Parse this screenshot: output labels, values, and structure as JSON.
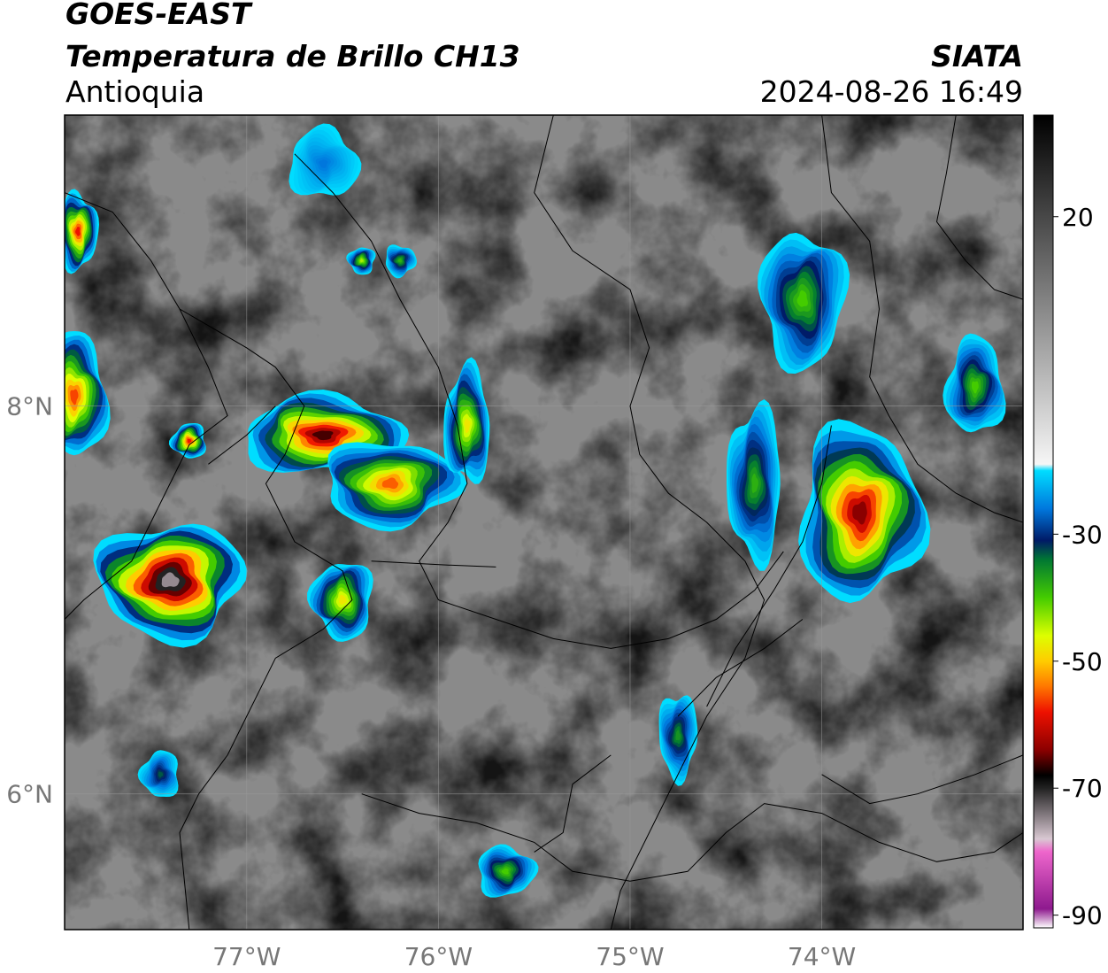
{
  "header": {
    "satellite": "GOES-EAST",
    "product": "Temperatura de Brillo CH13",
    "region": "Antioquia",
    "agency": "SIATA",
    "timestamp": "2024-08-26 16:49"
  },
  "map": {
    "lon_range": [
      -77.95,
      -72.95
    ],
    "lat_range": [
      5.3,
      9.5
    ],
    "lon_ticks": [
      {
        "value": -77,
        "label": "77°W"
      },
      {
        "value": -76,
        "label": "76°W"
      },
      {
        "value": -75,
        "label": "75°W"
      },
      {
        "value": -74,
        "label": "74°W"
      }
    ],
    "lat_ticks": [
      {
        "value": 8,
        "label": "8°N"
      },
      {
        "value": 6,
        "label": "6°N"
      }
    ],
    "gridlines": true
  },
  "colorbar": {
    "ticks": [
      {
        "value": 20,
        "label": "20"
      },
      {
        "value": -30,
        "label": "-30"
      },
      {
        "value": -50,
        "label": "-50"
      },
      {
        "value": -70,
        "label": "-70"
      },
      {
        "value": -90,
        "label": "-90"
      }
    ],
    "range": [
      -92,
      36
    ],
    "stops": [
      {
        "value": -92,
        "color": "#ffffff"
      },
      {
        "value": -89,
        "color": "#8e1a8e"
      },
      {
        "value": -80,
        "color": "#ee66cc"
      },
      {
        "value": -78,
        "color": "#d9c8d2"
      },
      {
        "value": -70,
        "color": "#222222"
      },
      {
        "value": -68,
        "color": "#000000"
      },
      {
        "value": -64,
        "color": "#8b0000"
      },
      {
        "value": -58,
        "color": "#ee1100"
      },
      {
        "value": -54,
        "color": "#ff7700"
      },
      {
        "value": -50,
        "color": "#ffcc00"
      },
      {
        "value": -46,
        "color": "#ddff00"
      },
      {
        "value": -40,
        "color": "#44cc00"
      },
      {
        "value": -34,
        "color": "#007733"
      },
      {
        "value": -31,
        "color": "#001a66"
      },
      {
        "value": -26,
        "color": "#0077dd"
      },
      {
        "value": -20,
        "color": "#00ddff"
      },
      {
        "value": -19,
        "color": "#f6f6f6"
      },
      {
        "value": 36,
        "color": "#000000"
      }
    ]
  },
  "storms": [
    {
      "id": "w-edge",
      "lon": -77.9,
      "lat": 8.05,
      "rx": 0.17,
      "ry": 0.32,
      "core": -56
    },
    {
      "id": "nw-edge",
      "lon": -77.88,
      "lat": 8.9,
      "rx": 0.1,
      "ry": 0.2,
      "core": -58
    },
    {
      "id": "uraba-large",
      "lon": -77.4,
      "lat": 7.1,
      "rx": 0.38,
      "ry": 0.3,
      "core": -75
    },
    {
      "id": "uraba-small",
      "lon": -77.3,
      "lat": 7.82,
      "rx": 0.09,
      "ry": 0.09,
      "core": -58
    },
    {
      "id": "north-center",
      "lon": -76.6,
      "lat": 7.85,
      "rx": 0.42,
      "ry": 0.2,
      "core": -66
    },
    {
      "id": "mid-body",
      "lon": -76.25,
      "lat": 7.6,
      "rx": 0.35,
      "ry": 0.22,
      "core": -55
    },
    {
      "id": "mid-tail",
      "lon": -76.5,
      "lat": 7.0,
      "rx": 0.16,
      "ry": 0.2,
      "core": -48
    },
    {
      "id": "ne-band",
      "lon": -75.85,
      "lat": 7.9,
      "rx": 0.12,
      "ry": 0.3,
      "core": -48
    },
    {
      "id": "east-big",
      "lon": -73.8,
      "lat": 7.45,
      "rx": 0.32,
      "ry": 0.45,
      "core": -64
    },
    {
      "id": "east-north",
      "lon": -74.1,
      "lat": 8.55,
      "rx": 0.22,
      "ry": 0.35,
      "core": -40
    },
    {
      "id": "east-mid",
      "lon": -74.35,
      "lat": 7.6,
      "rx": 0.14,
      "ry": 0.4,
      "core": -38
    },
    {
      "id": "far-east",
      "lon": -73.2,
      "lat": 8.1,
      "rx": 0.15,
      "ry": 0.25,
      "core": -40
    },
    {
      "id": "south-center",
      "lon": -75.65,
      "lat": 5.6,
      "rx": 0.15,
      "ry": 0.13,
      "core": -40
    },
    {
      "id": "south-east",
      "lon": -74.75,
      "lat": 6.3,
      "rx": 0.1,
      "ry": 0.22,
      "core": -36
    },
    {
      "id": "sw-small",
      "lon": -77.45,
      "lat": 6.1,
      "rx": 0.1,
      "ry": 0.12,
      "core": -33
    },
    {
      "id": "north-cyan",
      "lon": -76.6,
      "lat": 9.25,
      "rx": 0.18,
      "ry": 0.18,
      "core": -26
    },
    {
      "id": "north-small",
      "lon": -76.2,
      "lat": 8.75,
      "rx": 0.08,
      "ry": 0.08,
      "core": -38
    },
    {
      "id": "north-small2",
      "lon": -76.4,
      "lat": 8.75,
      "rx": 0.07,
      "ry": 0.07,
      "core": -44
    }
  ],
  "boundaries": [
    [
      [
        -77.95,
        9.1
      ],
      [
        -77.7,
        9.0
      ],
      [
        -77.5,
        8.75
      ],
      [
        -77.35,
        8.5
      ],
      [
        -77.2,
        8.2
      ],
      [
        -77.1,
        7.95
      ],
      [
        -77.3,
        7.8
      ],
      [
        -77.45,
        7.5
      ],
      [
        -77.6,
        7.2
      ],
      [
        -77.85,
        7.0
      ],
      [
        -77.95,
        6.9
      ]
    ],
    [
      [
        -77.35,
        8.5
      ],
      [
        -77.0,
        8.3
      ],
      [
        -76.85,
        8.2
      ],
      [
        -76.7,
        8.0
      ],
      [
        -76.8,
        7.75
      ],
      [
        -76.9,
        7.6
      ],
      [
        -76.75,
        7.3
      ],
      [
        -76.5,
        7.15
      ],
      [
        -76.45,
        7.0
      ],
      [
        -76.6,
        6.85
      ],
      [
        -76.85,
        6.7
      ],
      [
        -77.0,
        6.4
      ],
      [
        -77.1,
        6.2
      ],
      [
        -77.25,
        6.0
      ],
      [
        -77.35,
        5.8
      ],
      [
        -77.3,
        5.3
      ]
    ],
    [
      [
        -76.75,
        9.3
      ],
      [
        -76.55,
        9.1
      ],
      [
        -76.35,
        8.85
      ],
      [
        -76.2,
        8.55
      ],
      [
        -76.0,
        8.2
      ],
      [
        -75.9,
        7.9
      ],
      [
        -75.85,
        7.6
      ],
      [
        -75.95,
        7.4
      ],
      [
        -76.1,
        7.2
      ],
      [
        -76.0,
        7.0
      ],
      [
        -75.7,
        6.9
      ],
      [
        -75.4,
        6.8
      ],
      [
        -75.1,
        6.75
      ],
      [
        -74.8,
        6.8
      ],
      [
        -74.55,
        6.9
      ],
      [
        -74.35,
        7.05
      ],
      [
        -74.2,
        7.25
      ]
    ],
    [
      [
        -75.4,
        9.5
      ],
      [
        -75.5,
        9.1
      ],
      [
        -75.3,
        8.8
      ],
      [
        -75.0,
        8.6
      ],
      [
        -74.9,
        8.3
      ],
      [
        -75.0,
        8.0
      ],
      [
        -74.95,
        7.75
      ],
      [
        -74.8,
        7.55
      ],
      [
        -74.6,
        7.4
      ],
      [
        -74.4,
        7.2
      ],
      [
        -74.3,
        7.0
      ],
      [
        -74.4,
        6.7
      ],
      [
        -74.6,
        6.4
      ],
      [
        -74.75,
        6.1
      ],
      [
        -74.9,
        5.8
      ],
      [
        -75.05,
        5.5
      ],
      [
        -75.1,
        5.3
      ]
    ],
    [
      [
        -74.0,
        9.5
      ],
      [
        -73.95,
        9.1
      ],
      [
        -73.75,
        8.85
      ],
      [
        -73.7,
        8.5
      ],
      [
        -73.75,
        8.15
      ],
      [
        -73.65,
        7.95
      ],
      [
        -73.5,
        7.7
      ],
      [
        -73.3,
        7.55
      ],
      [
        -73.1,
        7.45
      ],
      [
        -72.95,
        7.4
      ]
    ],
    [
      [
        -73.95,
        7.9
      ],
      [
        -74.0,
        7.6
      ],
      [
        -74.1,
        7.3
      ],
      [
        -74.25,
        7.05
      ],
      [
        -74.45,
        6.75
      ],
      [
        -74.6,
        6.45
      ]
    ],
    [
      [
        -76.4,
        6.0
      ],
      [
        -76.1,
        5.9
      ],
      [
        -75.8,
        5.85
      ],
      [
        -75.5,
        5.75
      ],
      [
        -75.3,
        5.6
      ],
      [
        -75.0,
        5.55
      ],
      [
        -74.7,
        5.6
      ],
      [
        -74.5,
        5.8
      ],
      [
        -74.3,
        5.95
      ],
      [
        -74.0,
        5.9
      ],
      [
        -73.7,
        5.75
      ],
      [
        -73.4,
        5.65
      ],
      [
        -73.1,
        5.7
      ],
      [
        -72.95,
        5.8
      ]
    ],
    [
      [
        -74.75,
        6.4
      ],
      [
        -74.55,
        6.6
      ],
      [
        -74.3,
        6.75
      ],
      [
        -74.1,
        6.9
      ]
    ],
    [
      [
        -75.1,
        6.2
      ],
      [
        -75.3,
        6.05
      ],
      [
        -75.35,
        5.8
      ],
      [
        -75.5,
        5.7
      ]
    ],
    [
      [
        -72.95,
        6.2
      ],
      [
        -73.2,
        6.1
      ],
      [
        -73.5,
        6.0
      ],
      [
        -73.75,
        5.95
      ],
      [
        -74.0,
        6.1
      ]
    ],
    [
      [
        -73.3,
        9.5
      ],
      [
        -73.35,
        9.2
      ],
      [
        -73.4,
        8.95
      ],
      [
        -73.25,
        8.75
      ],
      [
        -73.1,
        8.6
      ],
      [
        -72.95,
        8.55
      ]
    ],
    [
      [
        -77.2,
        7.7
      ],
      [
        -77.0,
        7.85
      ],
      [
        -76.85,
        8.0
      ]
    ],
    [
      [
        -76.35,
        7.2
      ],
      [
        -75.95,
        7.18
      ],
      [
        -75.7,
        7.17
      ]
    ]
  ]
}
